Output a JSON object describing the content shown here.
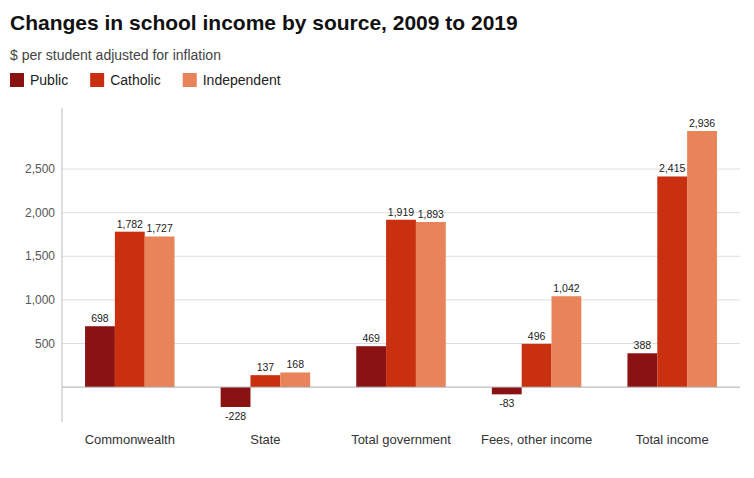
{
  "chart_data": {
    "type": "bar",
    "title": "Changes in school income by source, 2009 to 2019",
    "subtitle": "$ per student adjusted for inflation",
    "categories": [
      "Commonwealth",
      "State",
      "Total government",
      "Fees, other income",
      "Total income"
    ],
    "series": [
      {
        "name": "Public",
        "color": "#8B1212",
        "values": [
          698,
          -228,
          469,
          -83,
          388
        ]
      },
      {
        "name": "Catholic",
        "color": "#C83010",
        "values": [
          1782,
          137,
          1919,
          496,
          2415
        ],
        "value_labels": [
          "1,782",
          "137",
          "1,919",
          "496",
          "2,415"
        ]
      },
      {
        "name": "Independent",
        "color": "#E8835A",
        "values": [
          1727,
          168,
          1893,
          1042,
          2936
        ],
        "value_labels": [
          "1,727",
          "168",
          "1,893",
          "1,042",
          "2,936"
        ]
      }
    ],
    "ylim": [
      -400,
      3200
    ],
    "yticks": [
      500,
      {
        "value": 1000,
        "label": "1,000"
      },
      {
        "value": 1500,
        "label": "1,500"
      },
      {
        "value": 2000,
        "label": "2,000"
      },
      {
        "value": 2500,
        "label": "2,500"
      }
    ],
    "grid": true,
    "legend": "upper left",
    "data_labels": true
  }
}
